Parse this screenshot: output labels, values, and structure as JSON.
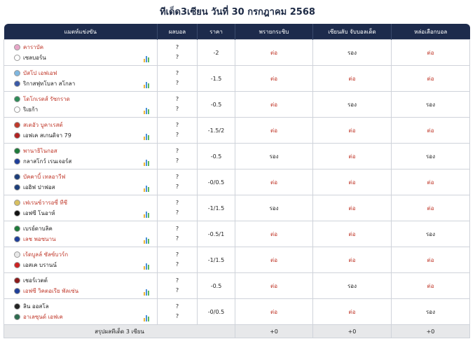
{
  "page": {
    "title": "ทีเด็ด3เซียน วันที่ 30 กรกฎาคม 2568"
  },
  "table": {
    "headers": [
      "แมตท์แข่งขัน",
      "ผลบอล",
      "ราคา",
      "พรายกระซิบ",
      "เซียนลับ จับบอลเด็ด",
      "หล่อเลือกบอล"
    ],
    "rows": [
      {
        "home": "คาราบัค",
        "away": "เซลบอร์น",
        "home_red": true,
        "away_red": false,
        "home_color": "#e8a6c8",
        "away_color": "#ffffff",
        "score_home": "?",
        "score_away": "?",
        "price": "-2",
        "picks": [
          "ต่อ",
          "รอง",
          "ต่อ"
        ]
      },
      {
        "home": "บัสโป เอฟเอฟ",
        "away": "ริกาสฟุทโบลา สโกลา",
        "home_red": true,
        "away_red": false,
        "home_color": "#7fb7e0",
        "away_color": "#3a5aa8",
        "score_home": "?",
        "score_away": "?",
        "price": "-1.5",
        "picks": [
          "ต่อ",
          "ต่อ",
          "ต่อ"
        ]
      },
      {
        "home": "โดโกเรตส์ รัซกราด",
        "away": "ริเยก้า",
        "home_red": true,
        "away_red": false,
        "home_color": "#2e8b57",
        "away_color": "#ffffff",
        "score_home": "?",
        "score_away": "?",
        "price": "-0.5",
        "picks": [
          "ต่อ",
          "รอง",
          "รอง"
        ]
      },
      {
        "home": "สเตอัว บูคาเรสต์",
        "away": "เอฟเค สเกนดิจา 79",
        "home_red": true,
        "away_red": false,
        "home_color": "#c0392b",
        "away_color": "#b22222",
        "score_home": "?",
        "score_away": "?",
        "price": "-1.5/2",
        "picks": [
          "ต่อ",
          "ต่อ",
          "ต่อ"
        ]
      },
      {
        "home": "พานาธิไนกอส",
        "away": "กลาสโกว์ เรนเจอร์ส",
        "home_red": true,
        "away_red": false,
        "home_color": "#1e7a3a",
        "away_color": "#1f3f9a",
        "score_home": "?",
        "score_away": "?",
        "price": "-0.5",
        "picks": [
          "รอง",
          "ต่อ",
          "รอง"
        ]
      },
      {
        "home": "บัคคาบิ้ เทลอาวีฟ",
        "away": "เอฮิฟ ปาฟอส",
        "home_red": true,
        "away_red": false,
        "home_color": "#1c3e7a",
        "away_color": "#1c3e7a",
        "score_home": "?",
        "score_away": "?",
        "price": "-0/0.5",
        "picks": [
          "ต่อ",
          "ต่อ",
          "ต่อ"
        ]
      },
      {
        "home": "เฟเรนซ์วารอซี่ ทีซี",
        "away": "เอฟซี โนอาห์",
        "home_red": true,
        "away_red": false,
        "home_color": "#d8c060",
        "away_color": "#111111",
        "score_home": "?",
        "score_away": "?",
        "price": "-1/1.5",
        "picks": [
          "รอง",
          "ต่อ",
          "ต่อ"
        ]
      },
      {
        "home": "เบรย์ดาบลิค",
        "away": "เลช พอซนาน",
        "home_red": false,
        "away_red": true,
        "home_color": "#1e7a3a",
        "away_color": "#1f3f9a",
        "score_home": "?",
        "score_away": "?",
        "price": "-0.5/1",
        "picks": [
          "ต่อ",
          "ต่อ",
          "รอง"
        ]
      },
      {
        "home": "เร้ดบูลล์ ซัลซ์บวร์ก",
        "away": "เอสเค บรานน์",
        "home_red": true,
        "away_red": false,
        "home_color": "#e8e8e8",
        "away_color": "#cc2222",
        "score_home": "?",
        "score_away": "?",
        "price": "-1/1.5",
        "picks": [
          "ต่อ",
          "ต่อ",
          "ต่อ"
        ]
      },
      {
        "home": "เชอร์เวตต์",
        "away": "เอฟซี วิคตอเรีย พัลเซ่น",
        "home_red": false,
        "away_red": true,
        "home_color": "#8b1a1a",
        "away_color": "#1f3f9a",
        "score_home": "?",
        "score_away": "?",
        "price": "-0.5",
        "picks": [
          "ต่อ",
          "รอง",
          "ต่อ"
        ]
      },
      {
        "home": "ลิน ออสโล",
        "away": "อาเลซุนด์ เอฟเค",
        "home_red": false,
        "away_red": true,
        "home_color": "#222222",
        "away_color": "#2e6b4f",
        "score_home": "?",
        "score_away": "?",
        "price": "-0/0.5",
        "picks": [
          "ต่อ",
          "ต่อ",
          "รอง"
        ]
      }
    ],
    "summary": {
      "label": "สรุปผลทีเด็ด 3 เซียน",
      "values": [
        "+0",
        "+0",
        "+0"
      ]
    }
  },
  "colors": {
    "header_bg": "#1d2b4c",
    "pick_red": "#c0392b",
    "summary_bg": "#e7e8ea"
  }
}
